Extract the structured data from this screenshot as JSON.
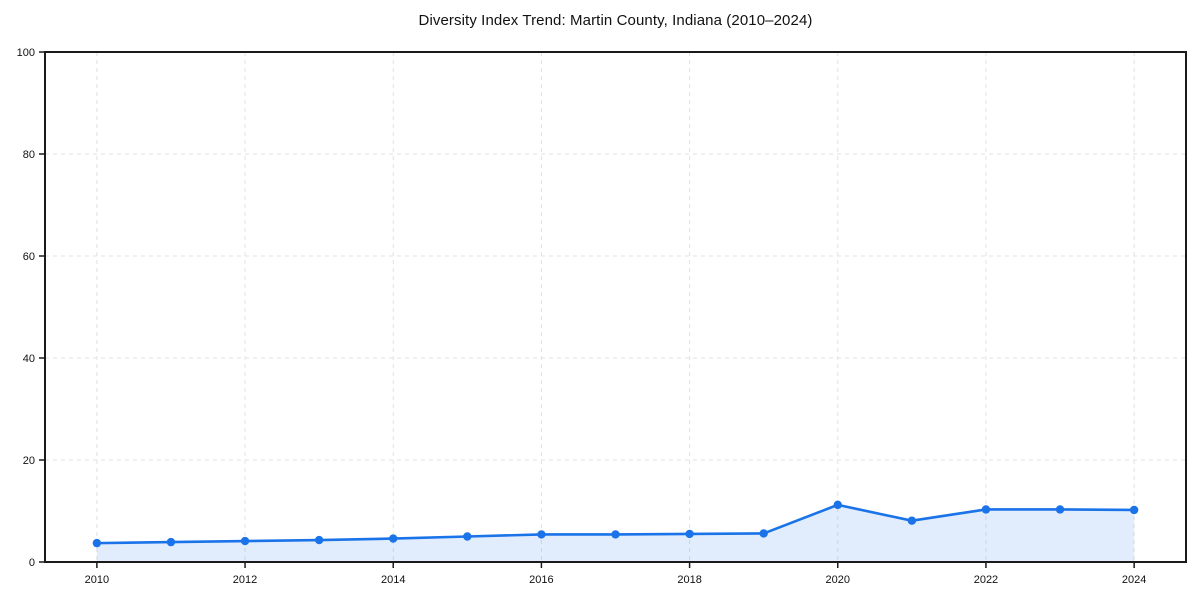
{
  "chart_data": {
    "type": "line",
    "title": "Diversity Index Trend: Martin County, Indiana (2010–2024)",
    "x": [
      2010,
      2011,
      2012,
      2013,
      2014,
      2015,
      2016,
      2017,
      2018,
      2019,
      2020,
      2021,
      2022,
      2023,
      2024
    ],
    "series": [
      {
        "name": "Diversity Index",
        "values": [
          3.7,
          3.9,
          4.1,
          4.3,
          4.6,
          5.0,
          5.4,
          5.4,
          5.5,
          5.6,
          11.2,
          8.1,
          10.3,
          10.3,
          10.2
        ]
      }
    ],
    "xlabel": "",
    "ylabel": "",
    "xticks": [
      2010,
      2012,
      2014,
      2016,
      2018,
      2020,
      2022,
      2024
    ],
    "yticks": [
      0,
      20,
      40,
      60,
      80,
      100
    ],
    "xlim": [
      2009.3,
      2024.7
    ],
    "ylim": [
      0,
      100
    ],
    "grid": "dashed-both-axes",
    "legend": "none",
    "marker": "circle",
    "fill_under_line": true,
    "colors": {
      "line": "#1a73e8",
      "marker": "#1a73e8",
      "fill": "rgba(26,115,232,0.13)",
      "grid": "#e2e2e2",
      "axis": "#1a1a1a",
      "tick_label": "#111111",
      "background": "#ffffff"
    }
  }
}
